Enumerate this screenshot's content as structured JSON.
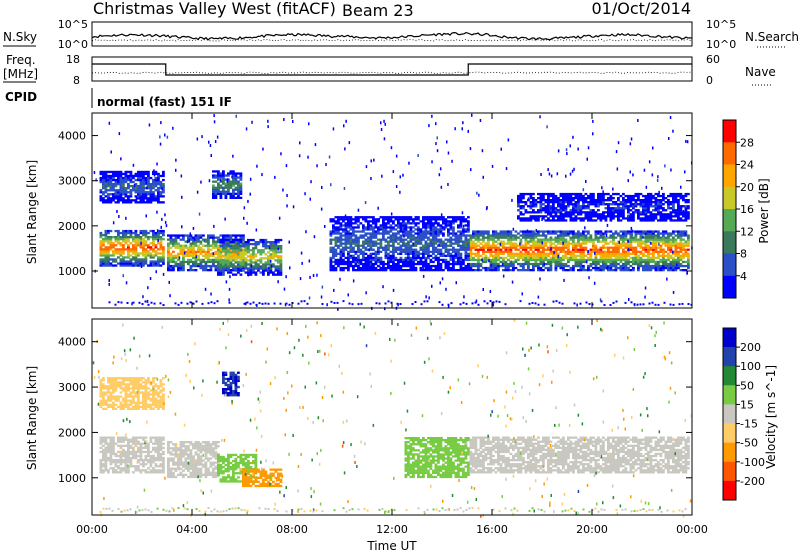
{
  "header": {
    "title": "Christmas Valley West (fitACF)",
    "beam": "Beam 23",
    "date": "01/Oct/2014"
  },
  "strip": {
    "left_label_1": "N.Sky",
    "right_label_1": "N.Search",
    "left_scale_1": [
      "10^5",
      "10^0"
    ],
    "right_scale_1": [
      "10^5",
      "10^0"
    ],
    "left_label_2": [
      "Freq.",
      "[MHz]"
    ],
    "right_label_2": "Nave",
    "left_scale_2": [
      "18",
      "8"
    ],
    "right_scale_2": [
      "60",
      "0"
    ],
    "cpid_label": "CPID",
    "mode_text": "normal (fast) 151 IF"
  },
  "colors": {
    "power": [
      "#0000ff",
      "#2a4fc8",
      "#3a7a5a",
      "#55aa55",
      "#c8c828",
      "#ffa500",
      "#ff6a00",
      "#ff0000"
    ],
    "velocity": [
      "#ff0000",
      "#ff5500",
      "#ff9900",
      "#ffcc66",
      "#c8c8c0",
      "#77cc44",
      "#228833",
      "#2244aa",
      "#0000cc"
    ]
  },
  "chart_data": [
    {
      "type": "heatmap",
      "panel": "power",
      "ylabel": "Slant Range [km]",
      "ylim": [
        180,
        4500
      ],
      "yticks": [
        1000,
        2000,
        3000,
        4000
      ],
      "xlim_hours": [
        0,
        24
      ],
      "xticks": [
        "00:00",
        "04:00",
        "08:00",
        "12:00",
        "16:00",
        "20:00",
        "00:00"
      ],
      "colorbar": {
        "label": "Power [dB]",
        "ticks": [
          "4",
          "8",
          "12",
          "16",
          "20",
          "24",
          "28"
        ]
      },
      "regions": [
        {
          "t0": 0.3,
          "t1": 2.9,
          "r0": 1100,
          "r1": 1900,
          "max": 28
        },
        {
          "t0": 3.0,
          "t1": 6.0,
          "r0": 1000,
          "r1": 1800,
          "max": 24
        },
        {
          "t0": 5.0,
          "t1": 7.5,
          "r0": 900,
          "r1": 1700,
          "max": 20
        },
        {
          "t0": 15.1,
          "t1": 23.9,
          "r0": 1000,
          "r1": 1900,
          "max": 28
        },
        {
          "t0": 0.3,
          "t1": 2.9,
          "r0": 2500,
          "r1": 3200,
          "max": 8
        },
        {
          "t0": 4.8,
          "t1": 5.9,
          "r0": 2600,
          "r1": 3200,
          "max": 12
        },
        {
          "t0": 9.5,
          "t1": 15.0,
          "r0": 1000,
          "r1": 2200,
          "max": 8
        },
        {
          "t0": 17.0,
          "t1": 23.9,
          "r0": 2100,
          "r1": 2700,
          "max": 4
        }
      ]
    },
    {
      "type": "heatmap",
      "panel": "velocity",
      "ylabel": "Slant Range [km]",
      "ylim": [
        180,
        4500
      ],
      "yticks": [
        1000,
        2000,
        3000,
        4000
      ],
      "xlim_hours": [
        0,
        24
      ],
      "xticks": [
        "00:00",
        "04:00",
        "08:00",
        "12:00",
        "16:00",
        "20:00",
        "00:00"
      ],
      "xlabel": "Time UT",
      "colorbar": {
        "label": "Velocity [m s^-1]",
        "ticks": [
          "200",
          "100",
          "50",
          "15",
          "-15",
          "-50",
          "-100",
          "-200"
        ]
      },
      "regions": [
        {
          "t0": 0.3,
          "t1": 2.9,
          "r0": 1100,
          "r1": 1900,
          "v": 0
        },
        {
          "t0": 3.0,
          "t1": 5.0,
          "r0": 1000,
          "r1": 1800,
          "v": 0
        },
        {
          "t0": 5.0,
          "t1": 6.5,
          "r0": 900,
          "r1": 1500,
          "v": 40
        },
        {
          "t0": 6.0,
          "t1": 7.5,
          "r0": 800,
          "r1": 1200,
          "v": -60
        },
        {
          "t0": 5.2,
          "t1": 5.8,
          "r0": 2800,
          "r1": 3300,
          "v": 200
        },
        {
          "t0": 12.5,
          "t1": 15.0,
          "r0": 1000,
          "r1": 1900,
          "v": 30
        },
        {
          "t0": 15.1,
          "t1": 23.9,
          "r0": 1100,
          "r1": 1900,
          "v": 0
        },
        {
          "t0": 0.3,
          "t1": 2.9,
          "r0": 2500,
          "r1": 3200,
          "v": -30
        }
      ]
    }
  ]
}
